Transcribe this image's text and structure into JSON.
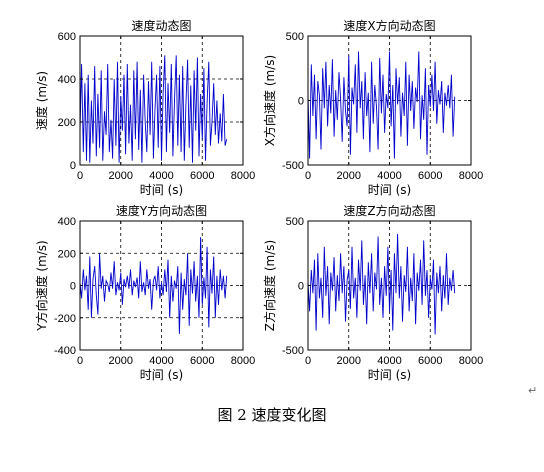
{
  "caption": "图 2  速度变化图",
  "paragraph_mark": "↵",
  "chart_data": [
    {
      "type": "line",
      "title": "速度动态图",
      "xlabel": "时间 (s)",
      "ylabel": "速度 (m/s)",
      "xlim": [
        0,
        8000
      ],
      "ylim": [
        0,
        600
      ],
      "xticks": [
        0,
        2000,
        4000,
        6000,
        8000
      ],
      "yticks": [
        0,
        200,
        400,
        600
      ],
      "grid": "dashed",
      "series": [
        {
          "color": "#0000cc",
          "x": [
            0,
            80,
            160,
            240,
            320,
            400,
            480,
            560,
            640,
            720,
            800,
            880,
            960,
            1040,
            1120,
            1200,
            1280,
            1360,
            1440,
            1520,
            1600,
            1680,
            1760,
            1840,
            1920,
            2000,
            2080,
            2160,
            2240,
            2320,
            2400,
            2480,
            2560,
            2640,
            2720,
            2800,
            2880,
            2960,
            3040,
            3120,
            3200,
            3280,
            3360,
            3440,
            3520,
            3600,
            3680,
            3760,
            3840,
            3920,
            4000,
            4080,
            4160,
            4240,
            4320,
            4400,
            4480,
            4560,
            4640,
            4720,
            4800,
            4880,
            4960,
            5040,
            5120,
            5200,
            5280,
            5360,
            5440,
            5520,
            5600,
            5680,
            5760,
            5840,
            5920,
            6000,
            6080,
            6160,
            6240,
            6320,
            6400,
            6480,
            6560,
            6640,
            6720,
            6800,
            6880,
            6960,
            7040,
            7120,
            7200
          ],
          "y": [
            150,
            470,
            60,
            380,
            20,
            420,
            10,
            300,
            100,
            460,
            40,
            330,
            80,
            440,
            20,
            250,
            140,
            470,
            60,
            210,
            30,
            400,
            90,
            480,
            10,
            320,
            160,
            420,
            50,
            470,
            100,
            280,
            20,
            440,
            120,
            480,
            70,
            350,
            10,
            420,
            200,
            60,
            390,
            140,
            480,
            30,
            260,
            420,
            80,
            460,
            20,
            330,
            510,
            60,
            380,
            150,
            470,
            40,
            300,
            510,
            90,
            420,
            60,
            460,
            20,
            280,
            490,
            80,
            370,
            10,
            440,
            160,
            500,
            40,
            330,
            120,
            450,
            20,
            290,
            480,
            90,
            200,
            380,
            140,
            300,
            100,
            240,
            110,
            330,
            90,
            120
          ]
        }
      ]
    },
    {
      "type": "line",
      "title": "速度X方向动态图",
      "xlabel": "时间 (s)",
      "ylabel": "X方向速度 (m/s)",
      "xlim": [
        0,
        8000
      ],
      "ylim": [
        -500,
        500
      ],
      "xticks": [
        0,
        2000,
        4000,
        6000,
        8000
      ],
      "yticks": [
        -500,
        0,
        500
      ],
      "grid": "dashed",
      "series": [
        {
          "color": "#0000cc",
          "x": [
            0,
            80,
            160,
            240,
            320,
            400,
            480,
            560,
            640,
            720,
            800,
            880,
            960,
            1040,
            1120,
            1200,
            1280,
            1360,
            1440,
            1520,
            1600,
            1680,
            1760,
            1840,
            1920,
            2000,
            2080,
            2160,
            2240,
            2320,
            2400,
            2480,
            2560,
            2640,
            2720,
            2800,
            2880,
            2960,
            3040,
            3120,
            3200,
            3280,
            3360,
            3440,
            3520,
            3600,
            3680,
            3760,
            3840,
            3920,
            4000,
            4080,
            4160,
            4240,
            4320,
            4400,
            4480,
            4560,
            4640,
            4720,
            4800,
            4880,
            4960,
            5040,
            5120,
            5200,
            5280,
            5360,
            5440,
            5520,
            5600,
            5680,
            5760,
            5840,
            5920,
            6000,
            6080,
            6160,
            6240,
            6320,
            6400,
            6480,
            6560,
            6640,
            6720,
            6800,
            6880,
            6960,
            7040,
            7120,
            7200
          ],
          "y": [
            50,
            -450,
            280,
            -120,
            200,
            -300,
            150,
            40,
            -380,
            250,
            -60,
            300,
            -200,
            120,
            -100,
            320,
            -280,
            80,
            -150,
            220,
            10,
            -320,
            180,
            -80,
            -200,
            350,
            -420,
            100,
            -30,
            280,
            -250,
            380,
            -60,
            150,
            -300,
            220,
            -120,
            60,
            -400,
            300,
            -180,
            120,
            -50,
            -380,
            330,
            -100,
            200,
            -250,
            50,
            -60,
            380,
            -200,
            120,
            -450,
            250,
            -30,
            180,
            -280,
            60,
            -120,
            300,
            -350,
            200,
            -80,
            150,
            -220,
            100,
            -10,
            380,
            -300,
            40,
            -150,
            250,
            -420,
            120,
            -50,
            200,
            -80,
            300,
            -180,
            80,
            -30,
            150,
            -250,
            60,
            -40,
            120,
            -60,
            200,
            -280,
            30
          ]
        }
      ]
    },
    {
      "type": "line",
      "title": "速度Y方向动态图",
      "xlabel": "时间 (s)",
      "ylabel": "Y方向速度 (m/s)",
      "xlim": [
        0,
        8000
      ],
      "ylim": [
        -400,
        400
      ],
      "xticks": [
        0,
        2000,
        4000,
        6000,
        8000
      ],
      "yticks": [
        -400,
        -200,
        0,
        200,
        400
      ],
      "grid": "dashed",
      "series": [
        {
          "color": "#0000cc",
          "x": [
            0,
            80,
            160,
            240,
            320,
            400,
            480,
            560,
            640,
            720,
            800,
            880,
            960,
            1040,
            1120,
            1200,
            1280,
            1360,
            1440,
            1520,
            1600,
            1680,
            1760,
            1840,
            1920,
            2000,
            2080,
            2160,
            2240,
            2320,
            2400,
            2480,
            2560,
            2640,
            2720,
            2800,
            2880,
            2960,
            3040,
            3120,
            3200,
            3280,
            3360,
            3440,
            3520,
            3600,
            3680,
            3760,
            3840,
            3920,
            4000,
            4080,
            4160,
            4240,
            4320,
            4400,
            4480,
            4560,
            4640,
            4720,
            4800,
            4880,
            4960,
            5040,
            5120,
            5200,
            5280,
            5360,
            5440,
            5520,
            5600,
            5680,
            5760,
            5840,
            5920,
            6000,
            6080,
            6160,
            6240,
            6320,
            6400,
            6480,
            6560,
            6640,
            6720,
            6800,
            6880,
            6960,
            7040,
            7120,
            7200
          ],
          "y": [
            20,
            -80,
            100,
            -30,
            60,
            -150,
            180,
            -200,
            40,
            120,
            -60,
            -180,
            200,
            -20,
            60,
            -100,
            30,
            10,
            -40,
            80,
            -20,
            150,
            -60,
            20,
            -30,
            80,
            -120,
            40,
            -10,
            60,
            -20,
            100,
            -60,
            30,
            -10,
            50,
            -80,
            150,
            -40,
            20,
            -60,
            100,
            -20,
            40,
            -150,
            30,
            60,
            -30,
            120,
            -80,
            20,
            -60,
            100,
            -40,
            160,
            -200,
            60,
            -100,
            30,
            -20,
            120,
            -300,
            80,
            -150,
            40,
            -60,
            200,
            -250,
            100,
            -50,
            150,
            -100,
            60,
            -200,
            300,
            -120,
            50,
            -80,
            240,
            -260,
            100,
            -50,
            180,
            -200,
            60,
            -120,
            100,
            -30,
            60,
            -80,
            60
          ]
        }
      ]
    },
    {
      "type": "line",
      "title": "速度Z方向动态图",
      "xlabel": "时间 (s)",
      "ylabel": "Z方向速度 (m/s)",
      "xlim": [
        0,
        8000
      ],
      "ylim": [
        -500,
        500
      ],
      "xticks": [
        0,
        2000,
        4000,
        6000,
        8000
      ],
      "yticks": [
        -500,
        0,
        500
      ],
      "grid": "dashed",
      "series": [
        {
          "color": "#0000cc",
          "x": [
            0,
            80,
            160,
            240,
            320,
            400,
            480,
            560,
            640,
            720,
            800,
            880,
            960,
            1040,
            1120,
            1200,
            1280,
            1360,
            1440,
            1520,
            1600,
            1680,
            1760,
            1840,
            1920,
            2000,
            2080,
            2160,
            2240,
            2320,
            2400,
            2480,
            2560,
            2640,
            2720,
            2800,
            2880,
            2960,
            3040,
            3120,
            3200,
            3280,
            3360,
            3440,
            3520,
            3600,
            3680,
            3760,
            3840,
            3920,
            4000,
            4080,
            4160,
            4240,
            4320,
            4400,
            4480,
            4560,
            4640,
            4720,
            4800,
            4880,
            4960,
            5040,
            5120,
            5200,
            5280,
            5360,
            5440,
            5520,
            5600,
            5680,
            5760,
            5840,
            5920,
            6000,
            6080,
            6160,
            6240,
            6320,
            6400,
            6480,
            6560,
            6640,
            6720,
            6800,
            6880,
            6960,
            7040,
            7120,
            7200
          ],
          "y": [
            30,
            -200,
            120,
            -60,
            200,
            -350,
            250,
            -100,
            60,
            -250,
            300,
            -80,
            150,
            -300,
            100,
            -40,
            220,
            -200,
            80,
            -120,
            250,
            -60,
            150,
            -280,
            40,
            120,
            -180,
            300,
            -100,
            60,
            -250,
            200,
            -40,
            350,
            -150,
            80,
            -300,
            180,
            -60,
            250,
            -200,
            100,
            -30,
            380,
            -150,
            60,
            -250,
            150,
            -80,
            300,
            -200,
            120,
            -350,
            250,
            -60,
            400,
            -100,
            150,
            -280,
            80,
            -50,
            300,
            -200,
            60,
            -120,
            250,
            -300,
            100,
            -40,
            200,
            -150,
            350,
            -80,
            120,
            -250,
            60,
            -30,
            200,
            -380,
            100,
            -60,
            150,
            -200,
            80,
            -100,
            250,
            -150,
            60,
            -40,
            120,
            -60
          ]
        }
      ]
    }
  ]
}
